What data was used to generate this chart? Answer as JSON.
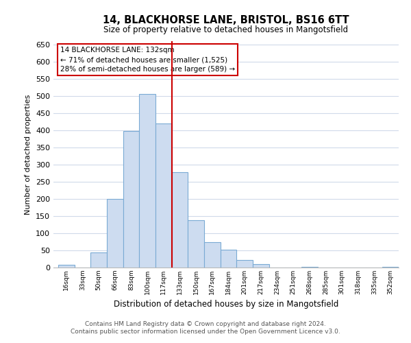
{
  "title": "14, BLACKHORSE LANE, BRISTOL, BS16 6TT",
  "subtitle": "Size of property relative to detached houses in Mangotsfield",
  "xlabel": "Distribution of detached houses by size in Mangotsfield",
  "ylabel": "Number of detached properties",
  "bar_color": "#cddcf0",
  "bar_edge_color": "#7aaad4",
  "background_color": "#ffffff",
  "grid_color": "#d0daea",
  "vline_color": "#cc0000",
  "bin_labels": [
    "16sqm",
    "33sqm",
    "50sqm",
    "66sqm",
    "83sqm",
    "100sqm",
    "117sqm",
    "133sqm",
    "150sqm",
    "167sqm",
    "184sqm",
    "201sqm",
    "217sqm",
    "234sqm",
    "251sqm",
    "268sqm",
    "285sqm",
    "301sqm",
    "318sqm",
    "335sqm",
    "352sqm"
  ],
  "bar_heights": [
    8,
    0,
    45,
    200,
    398,
    507,
    420,
    278,
    138,
    75,
    52,
    22,
    10,
    0,
    0,
    2,
    0,
    1,
    0,
    0,
    2
  ],
  "vline_x_index": 7,
  "annotation_title": "14 BLACKHORSE LANE: 132sqm",
  "annotation_line1": "← 71% of detached houses are smaller (1,525)",
  "annotation_line2": "28% of semi-detached houses are larger (589) →",
  "ylim": [
    0,
    660
  ],
  "yticks": [
    0,
    50,
    100,
    150,
    200,
    250,
    300,
    350,
    400,
    450,
    500,
    550,
    600,
    650
  ],
  "footer_line1": "Contains HM Land Registry data © Crown copyright and database right 2024.",
  "footer_line2": "Contains public sector information licensed under the Open Government Licence v3.0."
}
